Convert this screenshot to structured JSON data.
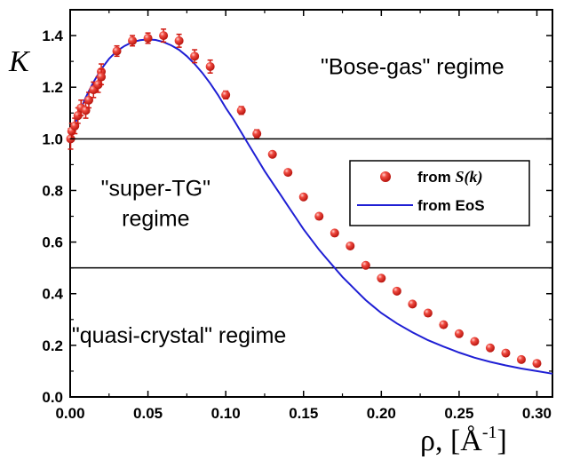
{
  "chart_data": {
    "type": "scatter",
    "ylabel": "K",
    "xlabel_main": "ρ, [Å",
    "xlabel_exp": "-1",
    "xlabel_close": "]",
    "xlim": [
      0.0,
      0.31
    ],
    "ylim": [
      0.0,
      1.5
    ],
    "x_ticks": [
      "0.00",
      "0.05",
      "0.10",
      "0.15",
      "0.20",
      "0.25",
      "0.30"
    ],
    "y_ticks": [
      "0.0",
      "0.2",
      "0.4",
      "0.6",
      "0.8",
      "1.0",
      "1.2",
      "1.4"
    ],
    "x_tick_values": [
      0.0,
      0.05,
      0.1,
      0.15,
      0.2,
      0.25,
      0.3
    ],
    "y_tick_values": [
      0.0,
      0.2,
      0.4,
      0.6,
      0.8,
      1.0,
      1.2,
      1.4
    ],
    "hlines": [
      1.0,
      0.5
    ],
    "regions": [
      {
        "lines": [
          "\"Bose-gas\" regime"
        ],
        "x": 0.22,
        "y": 1.25
      },
      {
        "lines": [
          "\"super-TG\"",
          "regime"
        ],
        "x": 0.055,
        "y": 0.78
      },
      {
        "lines": [
          "\"quasi-crystal\" regime"
        ],
        "x": 0.07,
        "y": 0.21
      }
    ],
    "legend": {
      "position": "right",
      "points_label_prefix": "from ",
      "points_label_italic": "S(k)",
      "line_label": "from EoS"
    },
    "colors": {
      "points": "#e8231c",
      "line": "#1f1fd4",
      "frame": "#000000"
    },
    "series_points": {
      "x": [
        0.0003,
        0.001,
        0.003,
        0.005,
        0.007,
        0.01,
        0.012,
        0.015,
        0.018,
        0.02,
        0.02,
        0.03,
        0.04,
        0.05,
        0.06,
        0.07,
        0.08,
        0.09,
        0.1,
        0.11,
        0.12,
        0.13,
        0.14,
        0.15,
        0.16,
        0.17,
        0.18,
        0.19,
        0.2,
        0.21,
        0.22,
        0.23,
        0.24,
        0.25,
        0.26,
        0.27,
        0.28,
        0.29,
        0.3
      ],
      "y": [
        1.0,
        1.03,
        1.05,
        1.09,
        1.12,
        1.11,
        1.15,
        1.19,
        1.21,
        1.26,
        1.24,
        1.34,
        1.38,
        1.39,
        1.4,
        1.38,
        1.32,
        1.28,
        1.17,
        1.11,
        1.02,
        0.94,
        0.87,
        0.775,
        0.7,
        0.635,
        0.585,
        0.51,
        0.46,
        0.41,
        0.36,
        0.325,
        0.28,
        0.245,
        0.215,
        0.19,
        0.17,
        0.145,
        0.13
      ],
      "yerr": [
        0.04,
        0.03,
        0.03,
        0.03,
        0.03,
        0.03,
        0.03,
        0.03,
        0.03,
        0.03,
        0.03,
        0.02,
        0.02,
        0.02,
        0.025,
        0.025,
        0.025,
        0.025,
        0.015,
        0.015,
        0.015,
        0.01,
        0.01,
        0.01,
        0.01,
        0.01,
        0.01,
        0.01,
        0.01,
        0.01,
        0.01,
        0.01,
        0.01,
        0.01,
        0.01,
        0.01,
        0.01,
        0.01,
        0.01
      ]
    },
    "series_line": {
      "x": [
        0.0,
        0.005,
        0.01,
        0.015,
        0.02,
        0.025,
        0.03,
        0.035,
        0.04,
        0.045,
        0.05,
        0.055,
        0.06,
        0.065,
        0.07,
        0.075,
        0.08,
        0.085,
        0.09,
        0.095,
        0.1,
        0.105,
        0.11,
        0.115,
        0.12,
        0.125,
        0.13,
        0.135,
        0.14,
        0.145,
        0.15,
        0.155,
        0.16,
        0.165,
        0.17,
        0.175,
        0.18,
        0.185,
        0.19,
        0.195,
        0.2,
        0.21,
        0.22,
        0.23,
        0.24,
        0.25,
        0.26,
        0.27,
        0.28,
        0.29,
        0.3,
        0.31
      ],
      "y": [
        1.0,
        1.09,
        1.16,
        1.22,
        1.27,
        1.31,
        1.34,
        1.36,
        1.375,
        1.382,
        1.385,
        1.383,
        1.375,
        1.362,
        1.345,
        1.32,
        1.29,
        1.255,
        1.215,
        1.17,
        1.12,
        1.075,
        1.025,
        0.975,
        0.925,
        0.875,
        0.83,
        0.785,
        0.74,
        0.695,
        0.65,
        0.61,
        0.57,
        0.535,
        0.5,
        0.465,
        0.435,
        0.405,
        0.375,
        0.35,
        0.325,
        0.285,
        0.25,
        0.22,
        0.195,
        0.172,
        0.152,
        0.136,
        0.122,
        0.11,
        0.1,
        0.09
      ]
    }
  }
}
